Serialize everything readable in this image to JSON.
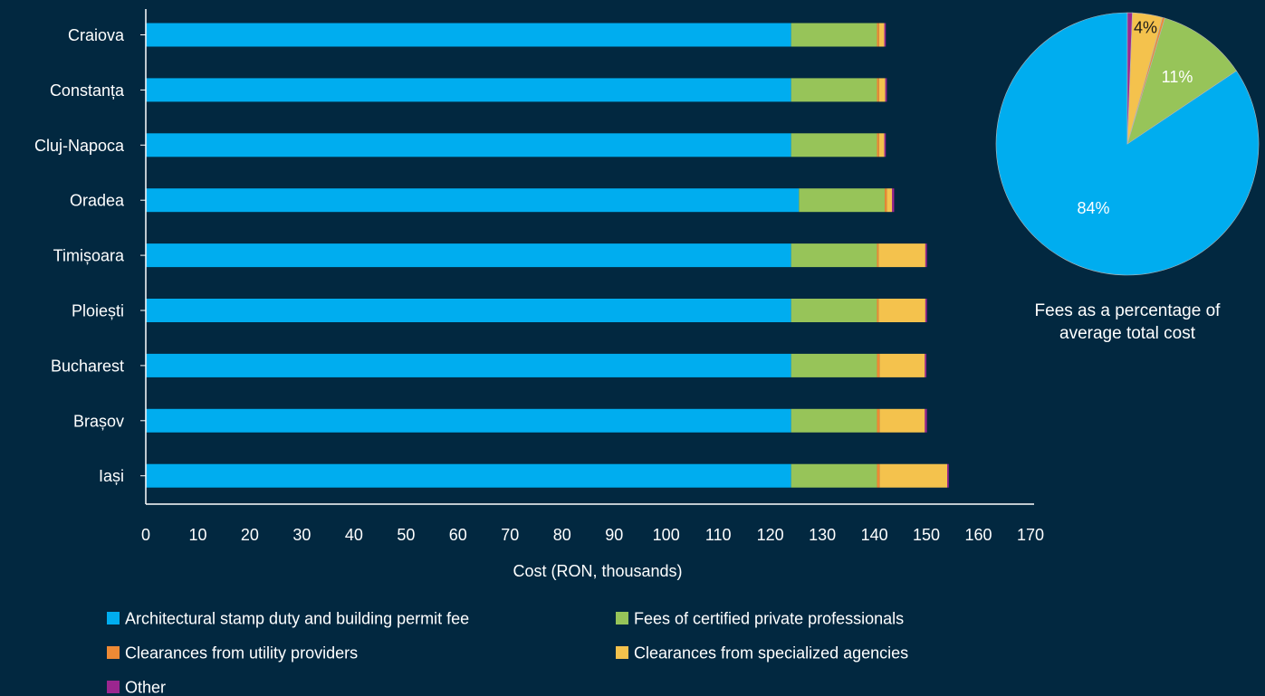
{
  "colors": {
    "background": "#022840",
    "text": "#ffffff",
    "axis": "#ffffff",
    "segments": [
      "#00adef",
      "#97c459",
      "#ee8a35",
      "#f4c24d",
      "#9b268f"
    ],
    "pie_text_dark": "#1a1a1a",
    "pie_text_light": "#ffffff"
  },
  "chart_data": [
    {
      "type": "bar",
      "orientation": "horizontal",
      "stacked": true,
      "categories": [
        "Craiova",
        "Constanța",
        "Cluj-Napoca",
        "Oradea",
        "Timișoara",
        "Ploiești",
        "Bucharest",
        "Brașov",
        "Iași"
      ],
      "series": [
        {
          "name": "Architectural stamp duty and building permit fee",
          "values": [
            124.0,
            124.0,
            124.0,
            125.5,
            124.0,
            124.0,
            124.0,
            124.0,
            124.0
          ]
        },
        {
          "name": "Fees of certified private professionals",
          "values": [
            16.5,
            16.5,
            16.5,
            16.5,
            16.5,
            16.5,
            16.5,
            16.5,
            16.5
          ]
        },
        {
          "name": "Clearances from utility providers",
          "values": [
            0.4,
            0.4,
            0.4,
            0.4,
            0.3,
            0.3,
            0.5,
            0.5,
            0.5
          ]
        },
        {
          "name": "Clearances from specialized agencies",
          "values": [
            1.0,
            1.2,
            1.0,
            1.0,
            9.0,
            9.0,
            8.7,
            8.7,
            13.0
          ]
        },
        {
          "name": "Other",
          "values": [
            0.3,
            0.3,
            0.3,
            0.4,
            0.3,
            0.3,
            0.3,
            0.4,
            0.3
          ]
        }
      ],
      "xlabel": "Cost (RON, thousands)",
      "xlim": [
        0,
        170
      ],
      "xticks": [
        "0",
        "10",
        "20",
        "30",
        "40",
        "50",
        "60",
        "70",
        "80",
        "90",
        "100",
        "110",
        "120",
        "130",
        "140",
        "150",
        "160",
        "170"
      ],
      "legend_position": "bottom"
    },
    {
      "type": "pie",
      "labels": [
        "Architectural stamp duty and building permit fee",
        "Fees of certified private professionals",
        "Clearances from utility providers",
        "Clearances from specialized agencies",
        "Other"
      ],
      "values": [
        84.4,
        11.0,
        0.3,
        3.7,
        0.6
      ],
      "slice_labels": [
        "84%",
        "11%",
        "",
        "4%",
        ""
      ],
      "caption_lines": [
        "Fees as a percentage of",
        "average total cost"
      ]
    }
  ]
}
